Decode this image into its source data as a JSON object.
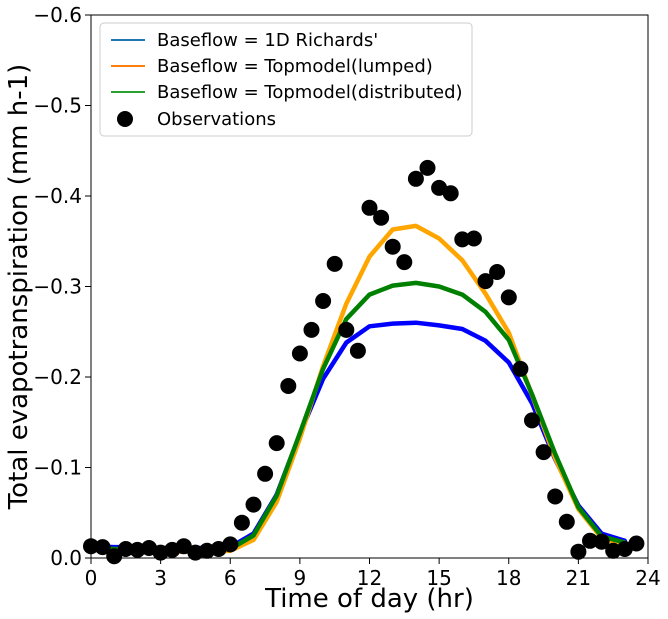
{
  "chart_data": {
    "type": "line",
    "xlabel": "Time of day (hr)",
    "ylabel": "Total evapotranspiration (mm h-1)",
    "xlim": [
      0,
      24
    ],
    "ylim": [
      0,
      -0.6
    ],
    "y_axis_inverted": true,
    "grid": false,
    "legend_position": "top-left",
    "xticks": [
      0,
      3,
      6,
      9,
      12,
      15,
      18,
      21,
      24
    ],
    "xtick_labels": [
      "0",
      "3",
      "6",
      "9",
      "12",
      "15",
      "18",
      "21",
      "24"
    ],
    "yticks": [
      0,
      -0.1,
      -0.2,
      -0.3,
      -0.4,
      -0.5,
      -0.6
    ],
    "ytick_labels": [
      "0.0",
      "−0.1",
      "−0.2",
      "−0.3",
      "−0.4",
      "−0.5",
      "−0.6"
    ],
    "x": [
      0,
      1,
      2,
      3,
      4,
      5,
      6,
      7,
      8,
      9,
      10,
      11,
      12,
      13,
      14,
      15,
      16,
      17,
      18,
      19,
      20,
      21,
      22,
      23
    ],
    "series": [
      {
        "name": "Baseflow = 1D Richards'",
        "legend_color": "#1f77b4",
        "line_color": "#0000ff",
        "values": [
          -0.013,
          -0.012,
          -0.012,
          -0.011,
          -0.011,
          -0.011,
          -0.012,
          -0.027,
          -0.07,
          -0.137,
          -0.198,
          -0.238,
          -0.256,
          -0.259,
          -0.26,
          -0.257,
          -0.253,
          -0.24,
          -0.216,
          -0.171,
          -0.109,
          -0.058,
          -0.027,
          -0.019
        ]
      },
      {
        "name": "Baseflow = Topmodel(lumped)",
        "legend_color": "#ff7f0e",
        "line_color": "#ffa500",
        "values": [
          -0.009,
          -0.008,
          -0.008,
          -0.007,
          -0.007,
          -0.007,
          -0.008,
          -0.02,
          -0.062,
          -0.132,
          -0.212,
          -0.281,
          -0.333,
          -0.363,
          -0.367,
          -0.353,
          -0.329,
          -0.292,
          -0.249,
          -0.18,
          -0.11,
          -0.054,
          -0.022,
          -0.015
        ]
      },
      {
        "name": "Baseflow = Topmodel(distributed)",
        "legend_color": "#2ca02c",
        "line_color": "#008000",
        "values": [
          -0.011,
          -0.01,
          -0.01,
          -0.009,
          -0.009,
          -0.009,
          -0.01,
          -0.025,
          -0.069,
          -0.138,
          -0.209,
          -0.264,
          -0.291,
          -0.301,
          -0.304,
          -0.3,
          -0.291,
          -0.272,
          -0.241,
          -0.181,
          -0.115,
          -0.056,
          -0.024,
          -0.017
        ]
      }
    ],
    "observations": {
      "name": "Observations",
      "color": "#000000",
      "points": [
        [
          0.0,
          -0.013
        ],
        [
          0.5,
          -0.012
        ],
        [
          1.0,
          -0.002
        ],
        [
          1.5,
          -0.01
        ],
        [
          2.0,
          -0.009
        ],
        [
          2.5,
          -0.011
        ],
        [
          3.0,
          -0.006
        ],
        [
          3.5,
          -0.009
        ],
        [
          4.0,
          -0.013
        ],
        [
          4.5,
          -0.006
        ],
        [
          5.0,
          -0.008
        ],
        [
          5.5,
          -0.01
        ],
        [
          6.0,
          -0.015
        ],
        [
          6.5,
          -0.039
        ],
        [
          7.0,
          -0.059
        ],
        [
          7.5,
          -0.093
        ],
        [
          8.0,
          -0.127
        ],
        [
          8.5,
          -0.19
        ],
        [
          9.0,
          -0.226
        ],
        [
          9.5,
          -0.252
        ],
        [
          10.0,
          -0.284
        ],
        [
          10.5,
          -0.325
        ],
        [
          11.0,
          -0.252
        ],
        [
          11.5,
          -0.229
        ],
        [
          12.0,
          -0.387
        ],
        [
          12.5,
          -0.376
        ],
        [
          13.0,
          -0.344
        ],
        [
          13.5,
          -0.327
        ],
        [
          14.0,
          -0.419
        ],
        [
          14.5,
          -0.431
        ],
        [
          15.0,
          -0.409
        ],
        [
          15.5,
          -0.403
        ],
        [
          16.0,
          -0.352
        ],
        [
          16.5,
          -0.353
        ],
        [
          17.0,
          -0.306
        ],
        [
          17.5,
          -0.316
        ],
        [
          18.0,
          -0.288
        ],
        [
          18.5,
          -0.209
        ],
        [
          19.0,
          -0.152
        ],
        [
          19.5,
          -0.117
        ],
        [
          20.0,
          -0.068
        ],
        [
          20.5,
          -0.04
        ],
        [
          21.0,
          -0.007
        ],
        [
          21.5,
          -0.019
        ],
        [
          22.0,
          -0.018
        ],
        [
          22.5,
          -0.008
        ],
        [
          23.0,
          -0.01
        ],
        [
          23.5,
          -0.016
        ]
      ]
    }
  }
}
